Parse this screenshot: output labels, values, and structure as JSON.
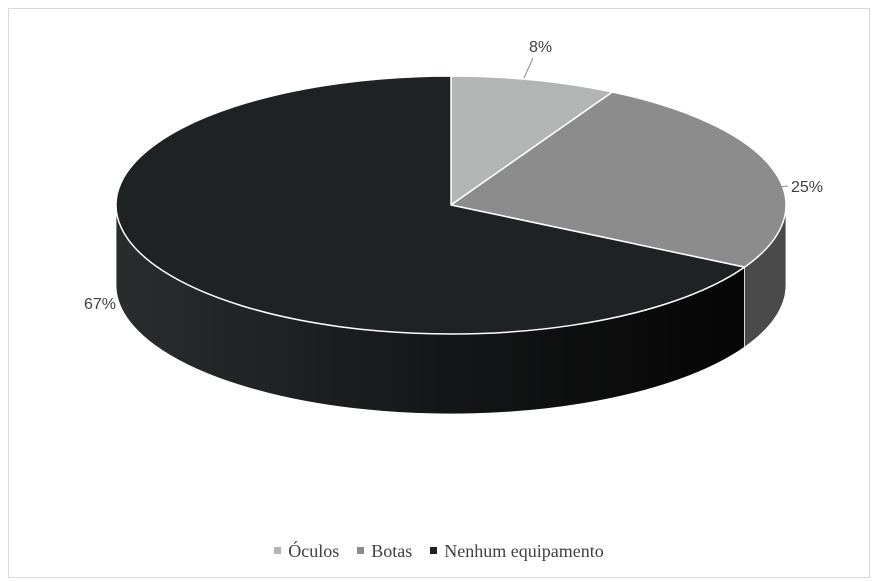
{
  "chart_data": {
    "type": "pie",
    "title": "",
    "categories": [
      "Óculos",
      "Botas",
      "Nenhum equipamento"
    ],
    "values": [
      8,
      25,
      67
    ],
    "value_labels": [
      "8%",
      "25%",
      "67%"
    ],
    "legend_position": "bottom",
    "style": "3d",
    "colors": {
      "Óculos": "#b3b5b5",
      "Botas": "#8c8c8c",
      "Nenhum equipamento": "#1f2223"
    },
    "side_colors": {
      "Óculos": "#7c7e7e",
      "Botas": "#4a4a4a",
      "Nenhum equipamento": "#111213"
    }
  }
}
